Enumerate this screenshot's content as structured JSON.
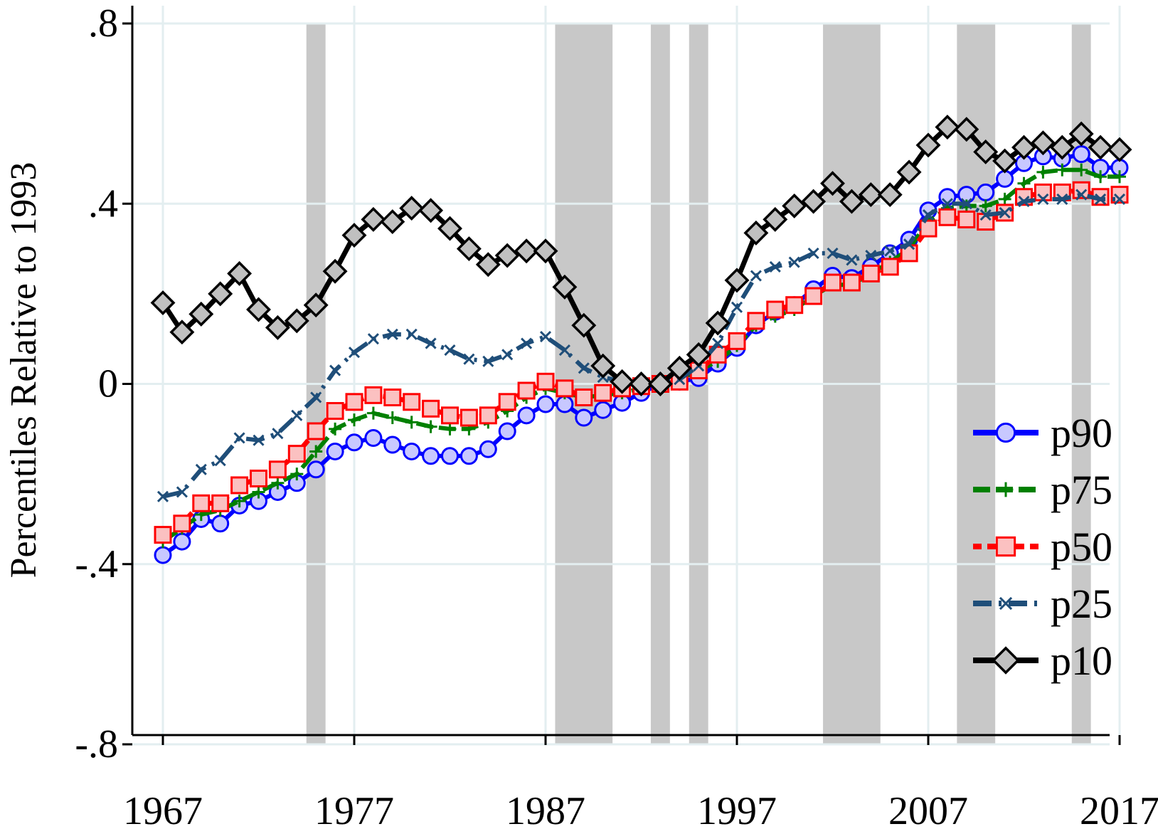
{
  "chart_data": {
    "type": "line",
    "title": "",
    "xlabel": "",
    "ylabel": "Percentiles Relative to 1993",
    "xlim": [
      1967,
      2017
    ],
    "ylim": [
      -0.8,
      0.8
    ],
    "x_ticks": [
      {
        "value": 1967,
        "label": "1967"
      },
      {
        "value": 1977,
        "label": "1977"
      },
      {
        "value": 1987,
        "label": "1987"
      },
      {
        "value": 1997,
        "label": "1997"
      },
      {
        "value": 2007,
        "label": "2007"
      },
      {
        "value": 2017,
        "label": "2017"
      }
    ],
    "y_ticks": [
      {
        "value": 0.8,
        "label": ".8"
      },
      {
        "value": 0.4,
        "label": ".4"
      },
      {
        "value": 0,
        "label": "0"
      },
      {
        "value": -0.4,
        "label": "-.4"
      },
      {
        "value": -0.8,
        "label": "-.8"
      }
    ],
    "grid": true,
    "legend_position": "bottom-right",
    "recession_shading": [
      {
        "start": 1974.5,
        "end": 1975.5
      },
      {
        "start": 1987.5,
        "end": 1990.5
      },
      {
        "start": 1992.5,
        "end": 1993.5
      },
      {
        "start": 1994.5,
        "end": 1995.5
      },
      {
        "start": 2001.5,
        "end": 2004.5
      },
      {
        "start": 2008.5,
        "end": 2010.5
      },
      {
        "start": 2014.5,
        "end": 2015.5
      }
    ],
    "x": [
      1967,
      1968,
      1969,
      1970,
      1971,
      1972,
      1973,
      1974,
      1975,
      1976,
      1977,
      1978,
      1979,
      1980,
      1981,
      1982,
      1983,
      1984,
      1985,
      1986,
      1987,
      1988,
      1989,
      1990,
      1991,
      1992,
      1993,
      1994,
      1995,
      1996,
      1997,
      1998,
      1999,
      2000,
      2001,
      2002,
      2003,
      2004,
      2005,
      2006,
      2007,
      2008,
      2009,
      2010,
      2011,
      2012,
      2013,
      2014,
      2015,
      2016,
      2017
    ],
    "series": [
      {
        "name": "p90",
        "color": "#0000ff",
        "marker": "circle",
        "values": [
          -0.38,
          -0.35,
          -0.3,
          -0.31,
          -0.27,
          -0.26,
          -0.24,
          -0.22,
          -0.19,
          -0.15,
          -0.13,
          -0.12,
          -0.135,
          -0.15,
          -0.16,
          -0.16,
          -0.16,
          -0.145,
          -0.105,
          -0.07,
          -0.045,
          -0.045,
          -0.075,
          -0.058,
          -0.042,
          -0.02,
          0.0,
          0.005,
          0.013,
          0.045,
          0.08,
          0.13,
          0.16,
          0.175,
          0.21,
          0.24,
          0.235,
          0.26,
          0.29,
          0.32,
          0.385,
          0.415,
          0.42,
          0.425,
          0.455,
          0.49,
          0.505,
          0.5,
          0.51,
          0.48,
          0.48
        ]
      },
      {
        "name": "p75",
        "color": "#008000",
        "marker": "plus",
        "values": [
          -0.35,
          -0.32,
          -0.29,
          -0.28,
          -0.26,
          -0.24,
          -0.22,
          -0.2,
          -0.15,
          -0.1,
          -0.08,
          -0.065,
          -0.075,
          -0.085,
          -0.095,
          -0.1,
          -0.1,
          -0.085,
          -0.06,
          -0.03,
          -0.01,
          -0.02,
          -0.03,
          -0.025,
          -0.02,
          -0.01,
          0.0,
          0.01,
          0.03,
          0.05,
          0.085,
          0.13,
          0.15,
          0.165,
          0.195,
          0.22,
          0.22,
          0.245,
          0.27,
          0.3,
          0.36,
          0.39,
          0.395,
          0.395,
          0.41,
          0.445,
          0.47,
          0.475,
          0.475,
          0.46,
          0.46
        ]
      },
      {
        "name": "p50",
        "color": "#ff0000",
        "marker": "square",
        "values": [
          -0.335,
          -0.31,
          -0.265,
          -0.265,
          -0.225,
          -0.21,
          -0.19,
          -0.155,
          -0.105,
          -0.06,
          -0.04,
          -0.025,
          -0.03,
          -0.04,
          -0.055,
          -0.07,
          -0.075,
          -0.07,
          -0.04,
          -0.015,
          0.005,
          -0.01,
          -0.03,
          -0.02,
          -0.01,
          -0.005,
          0.0,
          0.005,
          0.03,
          0.065,
          0.095,
          0.14,
          0.165,
          0.175,
          0.195,
          0.225,
          0.225,
          0.245,
          0.26,
          0.29,
          0.345,
          0.37,
          0.365,
          0.36,
          0.38,
          0.415,
          0.425,
          0.425,
          0.43,
          0.415,
          0.42
        ]
      },
      {
        "name": "p25",
        "color": "#1f4e79",
        "marker": "x",
        "values": [
          -0.25,
          -0.24,
          -0.19,
          -0.17,
          -0.12,
          -0.125,
          -0.11,
          -0.07,
          -0.03,
          0.03,
          0.07,
          0.1,
          0.11,
          0.11,
          0.09,
          0.075,
          0.055,
          0.05,
          0.065,
          0.09,
          0.105,
          0.075,
          0.035,
          0.015,
          0.005,
          0.0,
          0.0,
          0.01,
          0.04,
          0.09,
          0.17,
          0.24,
          0.26,
          0.27,
          0.29,
          0.29,
          0.275,
          0.285,
          0.295,
          0.31,
          0.375,
          0.4,
          0.4,
          0.375,
          0.38,
          0.405,
          0.41,
          0.41,
          0.42,
          0.41,
          0.41
        ]
      },
      {
        "name": "p10",
        "color": "#000000",
        "marker": "diamond",
        "values": [
          0.18,
          0.115,
          0.155,
          0.2,
          0.245,
          0.165,
          0.125,
          0.14,
          0.175,
          0.25,
          0.33,
          0.365,
          0.36,
          0.39,
          0.385,
          0.345,
          0.3,
          0.265,
          0.285,
          0.295,
          0.295,
          0.215,
          0.13,
          0.04,
          0.005,
          0.0,
          0.0,
          0.035,
          0.065,
          0.135,
          0.23,
          0.335,
          0.365,
          0.395,
          0.405,
          0.445,
          0.405,
          0.42,
          0.42,
          0.47,
          0.53,
          0.57,
          0.565,
          0.515,
          0.495,
          0.525,
          0.535,
          0.525,
          0.555,
          0.525,
          0.52
        ]
      }
    ]
  }
}
